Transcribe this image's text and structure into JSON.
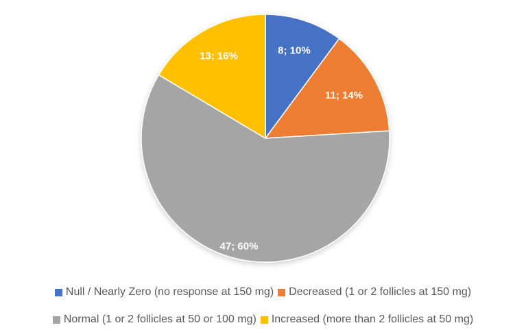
{
  "chart_data": {
    "type": "pie",
    "categories": [
      "Null / Nearly Zero (no response at 150 mg)",
      "Decreased (1 or 2 follicles at 150 mg)",
      "Normal (1 or 2 follicles at 50 or 100 mg)",
      "Increased (more than 2 follicles at 50 mg)"
    ],
    "values": [
      8,
      11,
      47,
      13
    ],
    "percentages": [
      10,
      14,
      60,
      16
    ],
    "data_labels": [
      "8; 10%",
      "11; 14%",
      "47; 60%",
      "13; 16%"
    ],
    "colors": [
      "#4472C4",
      "#ED7D31",
      "#A5A5A5",
      "#FFC000"
    ],
    "title": "",
    "legend_position": "bottom",
    "start_angle": "top, clockwise"
  }
}
